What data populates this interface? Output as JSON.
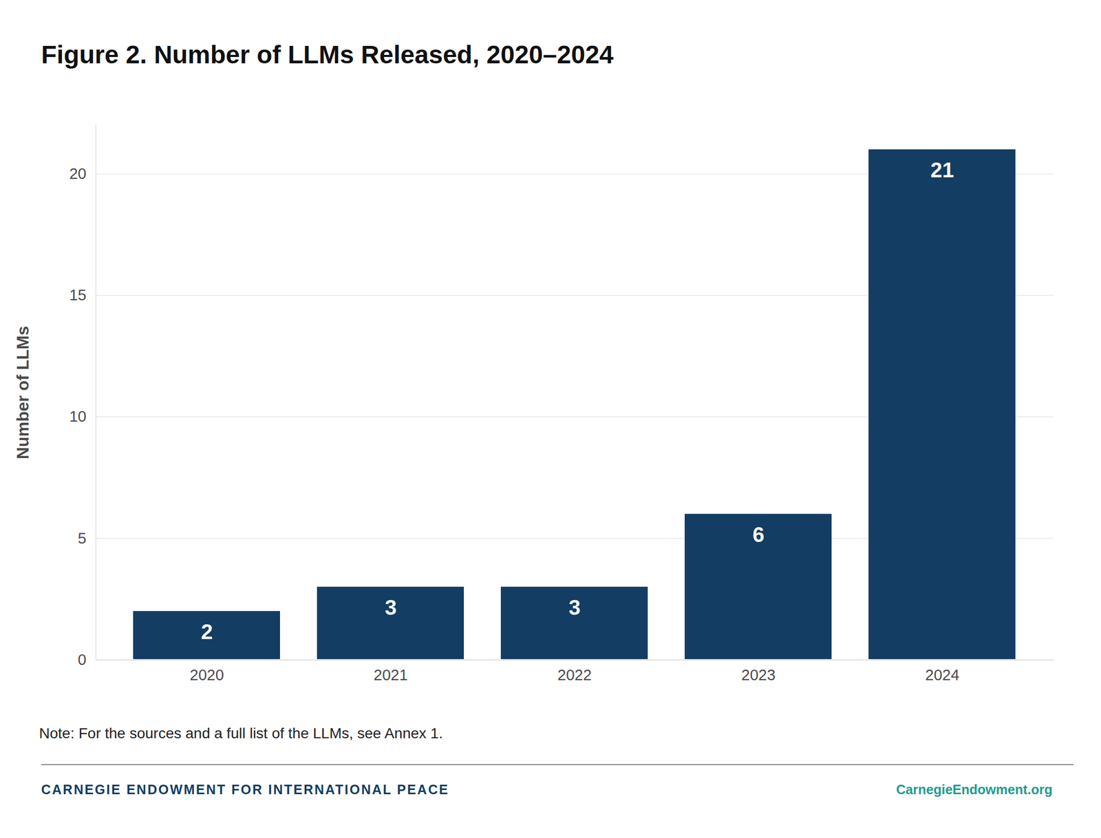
{
  "chart_data": {
    "type": "bar",
    "title": "Figure 2. Number of LLMs Released, 2020–2024",
    "y_label": "Number of LLMs",
    "categories": [
      "2020",
      "2021",
      "2022",
      "2023",
      "2024"
    ],
    "values": [
      2,
      3,
      3,
      6,
      21
    ],
    "color": "#133d62",
    "ylim": [
      0,
      22
    ],
    "yticks": [
      0,
      5,
      10,
      15,
      20
    ],
    "grid": true,
    "data_labels": true,
    "note": "Note: For the sources and a full list of the LLMs, see Annex 1.",
    "footer": {
      "left": "CARNEGIE ENDOWMENT FOR INTERNATIONAL PEACE",
      "right": "CarnegieEndowment.org"
    }
  }
}
